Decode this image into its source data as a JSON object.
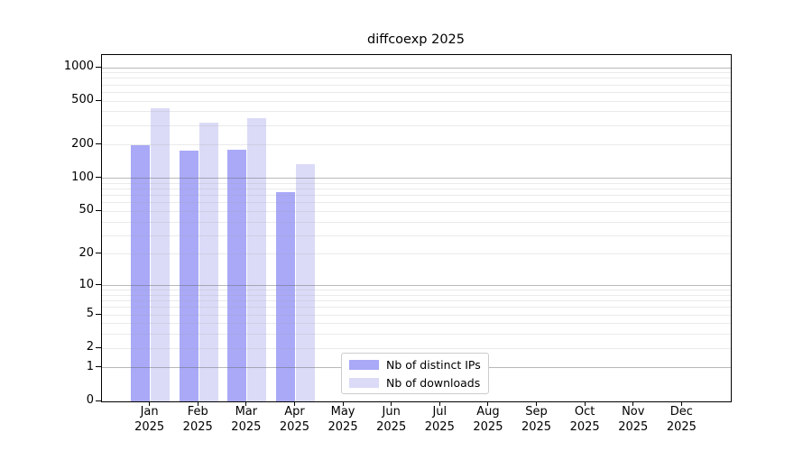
{
  "chart_data": {
    "type": "bar",
    "title": "diffcoexp 2025",
    "categories": [
      {
        "month": "Jan",
        "year": "2025"
      },
      {
        "month": "Feb",
        "year": "2025"
      },
      {
        "month": "Mar",
        "year": "2025"
      },
      {
        "month": "Apr",
        "year": "2025"
      },
      {
        "month": "May",
        "year": "2025"
      },
      {
        "month": "Jun",
        "year": "2025"
      },
      {
        "month": "Jul",
        "year": "2025"
      },
      {
        "month": "Aug",
        "year": "2025"
      },
      {
        "month": "Sep",
        "year": "2025"
      },
      {
        "month": "Oct",
        "year": "2025"
      },
      {
        "month": "Nov",
        "year": "2025"
      },
      {
        "month": "Dec",
        "year": "2025"
      }
    ],
    "series": [
      {
        "name": "Nb of distinct IPs",
        "color": "#a9a9f8",
        "values": [
          200,
          180,
          181,
          75,
          0,
          0,
          0,
          0,
          0,
          0,
          0,
          0
        ]
      },
      {
        "name": "Nb of downloads",
        "color": "#dbdbf8",
        "values": [
          430,
          320,
          350,
          135,
          0,
          0,
          0,
          0,
          0,
          0,
          0,
          0
        ]
      }
    ],
    "y_ticks": [
      0,
      1,
      2,
      5,
      10,
      20,
      50,
      100,
      200,
      500,
      1000
    ],
    "y_major_gridlines": [
      1,
      10,
      100,
      1000
    ],
    "y_scale": "log1p",
    "ylim": [
      0,
      1300
    ],
    "xlabel": "",
    "ylabel": "",
    "grid": "horizontal, major and minor, drawn over bars",
    "legend_position": "bottom-center inside plot"
  }
}
